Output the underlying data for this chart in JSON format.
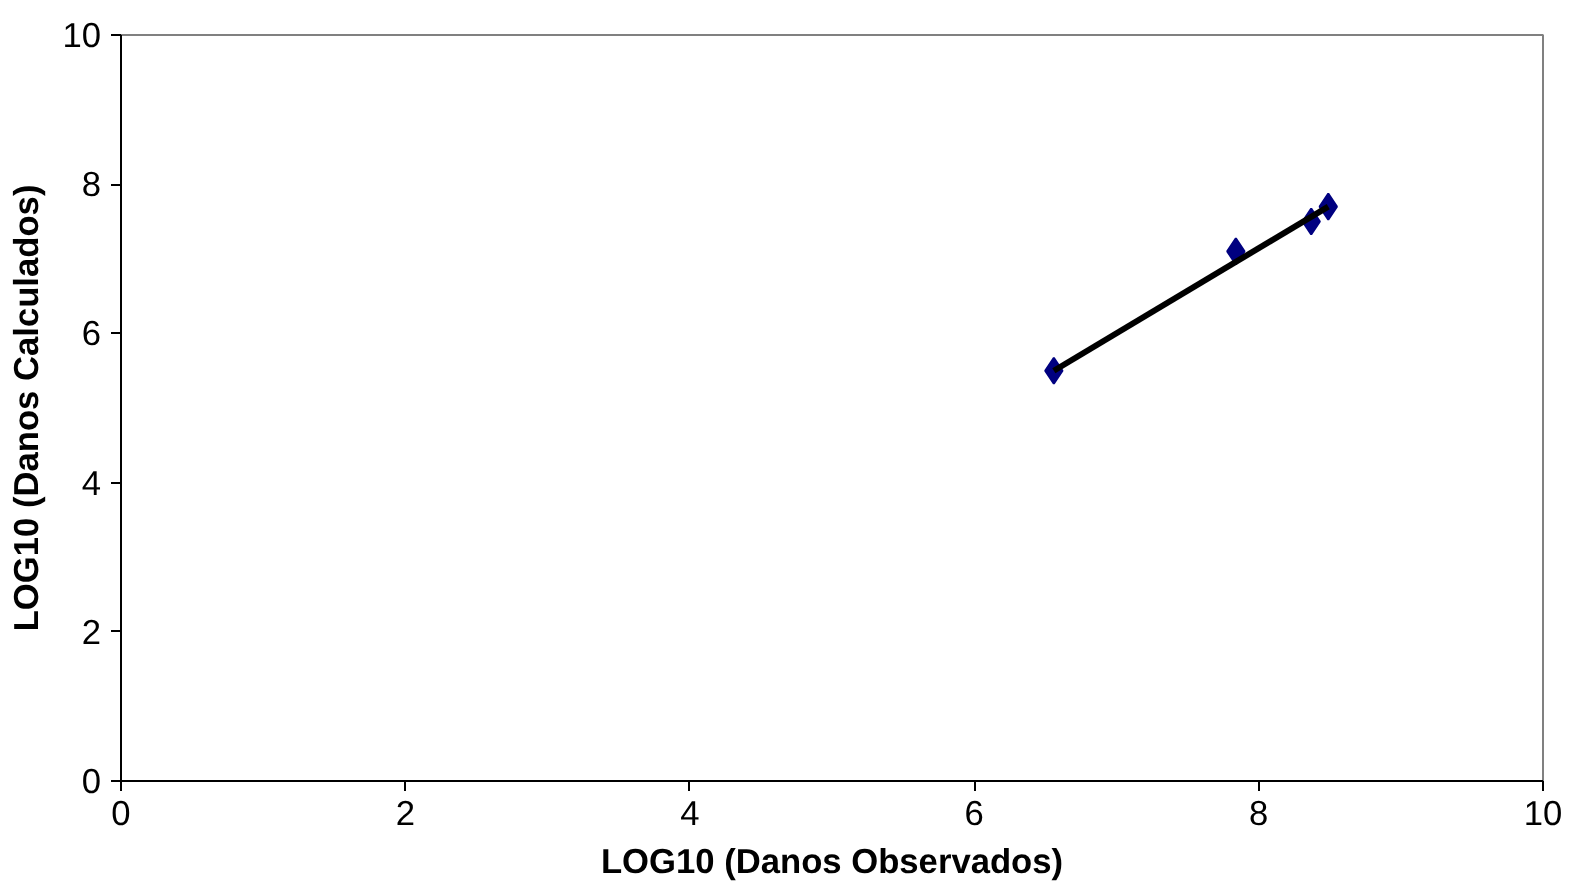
{
  "chart_data": {
    "type": "scatter",
    "xlabel": "LOG10 (Danos Observados)",
    "ylabel": "LOG10 (Danos Calculados)",
    "xlim": [
      0,
      10
    ],
    "ylim": [
      0,
      10
    ],
    "xticks": [
      0,
      2,
      4,
      6,
      8,
      10
    ],
    "yticks": [
      0,
      2,
      4,
      6,
      8,
      10
    ],
    "grid": false,
    "series": [
      {
        "marker": "diamond",
        "color": "#000080",
        "x": [
          6.56,
          7.84,
          8.37,
          8.49
        ],
        "values": [
          5.5,
          7.1,
          7.5,
          7.7
        ]
      },
      {
        "type": "line",
        "color": "#000000",
        "x": [
          6.56,
          8.49
        ],
        "values": [
          5.5,
          7.7
        ],
        "line_style": "solid",
        "marker": "none"
      }
    ]
  }
}
